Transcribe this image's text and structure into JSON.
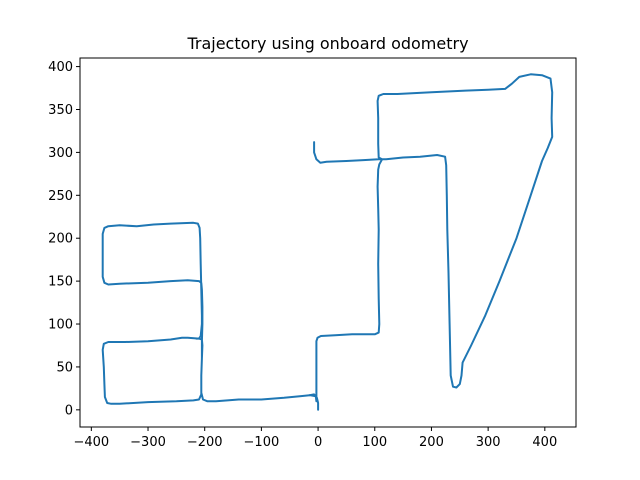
{
  "chart_data": {
    "type": "line",
    "title": "Trajectory using onboard odometry",
    "xlabel": "",
    "ylabel": "",
    "xlim": [
      -420,
      455
    ],
    "ylim": [
      -20,
      410
    ],
    "xticks": [
      -400,
      -300,
      -200,
      -100,
      0,
      100,
      200,
      300,
      400
    ],
    "yticks": [
      0,
      50,
      100,
      150,
      200,
      250,
      300,
      350,
      400
    ],
    "grid": false,
    "color": "#1f77b4",
    "series": [
      {
        "name": "",
        "points": [
          [
            0,
            0
          ],
          [
            0,
            8
          ],
          [
            -2,
            14
          ],
          [
            -5,
            16
          ],
          [
            -15,
            17
          ],
          [
            -30,
            16
          ],
          [
            -60,
            14
          ],
          [
            -100,
            12
          ],
          [
            -140,
            12
          ],
          [
            -160,
            11
          ],
          [
            -180,
            10
          ],
          [
            -195,
            10
          ],
          [
            -203,
            12
          ],
          [
            -206,
            20
          ],
          [
            -206,
            40
          ],
          [
            -205,
            60
          ],
          [
            -204,
            75
          ],
          [
            -205,
            82
          ],
          [
            -210,
            83
          ],
          [
            -230,
            84
          ],
          [
            -240,
            84
          ],
          [
            -260,
            82
          ],
          [
            -300,
            80
          ],
          [
            -340,
            79
          ],
          [
            -370,
            79
          ],
          [
            -378,
            77
          ],
          [
            -380,
            70
          ],
          [
            -378,
            50
          ],
          [
            -377,
            30
          ],
          [
            -376,
            15
          ],
          [
            -372,
            8
          ],
          [
            -365,
            7
          ],
          [
            -350,
            7
          ],
          [
            -300,
            9
          ],
          [
            -250,
            10
          ],
          [
            -220,
            11
          ],
          [
            -210,
            12
          ],
          [
            -206,
            18
          ],
          [
            -206,
            40
          ],
          [
            -205,
            60
          ],
          [
            -205,
            80
          ],
          [
            -204,
            100
          ],
          [
            -204,
            120
          ],
          [
            -205,
            140
          ],
          [
            -206,
            148
          ],
          [
            -210,
            150
          ],
          [
            -230,
            151
          ],
          [
            -260,
            150
          ],
          [
            -300,
            148
          ],
          [
            -350,
            147
          ],
          [
            -370,
            146
          ],
          [
            -377,
            148
          ],
          [
            -380,
            155
          ],
          [
            -380,
            180
          ],
          [
            -380,
            205
          ],
          [
            -377,
            212
          ],
          [
            -370,
            214
          ],
          [
            -350,
            215
          ],
          [
            -320,
            214
          ],
          [
            -290,
            216
          ],
          [
            -260,
            217
          ],
          [
            -220,
            218
          ],
          [
            -212,
            217
          ],
          [
            -209,
            212
          ],
          [
            -208,
            200
          ],
          [
            -207,
            170
          ],
          [
            -206,
            140
          ],
          [
            -205,
            110
          ],
          [
            -205,
            100
          ],
          [
            -207,
            86
          ],
          [
            -210,
            83
          ],
          [
            -215,
            83
          ]
        ]
      },
      {
        "name": "",
        "points": [
          [
            -15,
            17
          ],
          [
            -7,
            18
          ],
          [
            -4,
            16
          ],
          [
            -3,
            10
          ],
          [
            -3,
            80
          ],
          [
            -1,
            84
          ],
          [
            5,
            86
          ],
          [
            30,
            87
          ],
          [
            60,
            88
          ],
          [
            100,
            88
          ],
          [
            107,
            90
          ],
          [
            108,
            100
          ],
          [
            107,
            130
          ],
          [
            106,
            170
          ],
          [
            107,
            210
          ],
          [
            106,
            235
          ],
          [
            105,
            260
          ],
          [
            106,
            280
          ],
          [
            108,
            286
          ],
          [
            113,
            292
          ],
          [
            107,
            294
          ],
          [
            106,
            310
          ],
          [
            106,
            340
          ],
          [
            105,
            360
          ],
          [
            107,
            366
          ],
          [
            115,
            368
          ],
          [
            140,
            368
          ],
          [
            200,
            370
          ],
          [
            260,
            372
          ],
          [
            300,
            373
          ],
          [
            330,
            374
          ],
          [
            342,
            380
          ],
          [
            355,
            388
          ],
          [
            375,
            391
          ],
          [
            395,
            390
          ],
          [
            410,
            386
          ],
          [
            413,
            370
          ],
          [
            412,
            340
          ],
          [
            413,
            318
          ],
          [
            405,
            305
          ],
          [
            395,
            290
          ],
          [
            375,
            250
          ],
          [
            350,
            200
          ],
          [
            320,
            150
          ],
          [
            295,
            110
          ],
          [
            270,
            75
          ],
          [
            255,
            55
          ],
          [
            253,
            40
          ],
          [
            250,
            30
          ],
          [
            244,
            26
          ],
          [
            238,
            27
          ],
          [
            234,
            40
          ],
          [
            232,
            100
          ],
          [
            230,
            160
          ],
          [
            228,
            210
          ],
          [
            227,
            250
          ],
          [
            226,
            285
          ],
          [
            224,
            295
          ],
          [
            210,
            297
          ],
          [
            180,
            295
          ],
          [
            150,
            294
          ],
          [
            120,
            292
          ],
          [
            107,
            292
          ],
          [
            80,
            291
          ],
          [
            50,
            290
          ],
          [
            15,
            289
          ],
          [
            4,
            288
          ],
          [
            -3,
            292
          ],
          [
            -7,
            300
          ],
          [
            -7,
            312
          ]
        ]
      }
    ]
  }
}
